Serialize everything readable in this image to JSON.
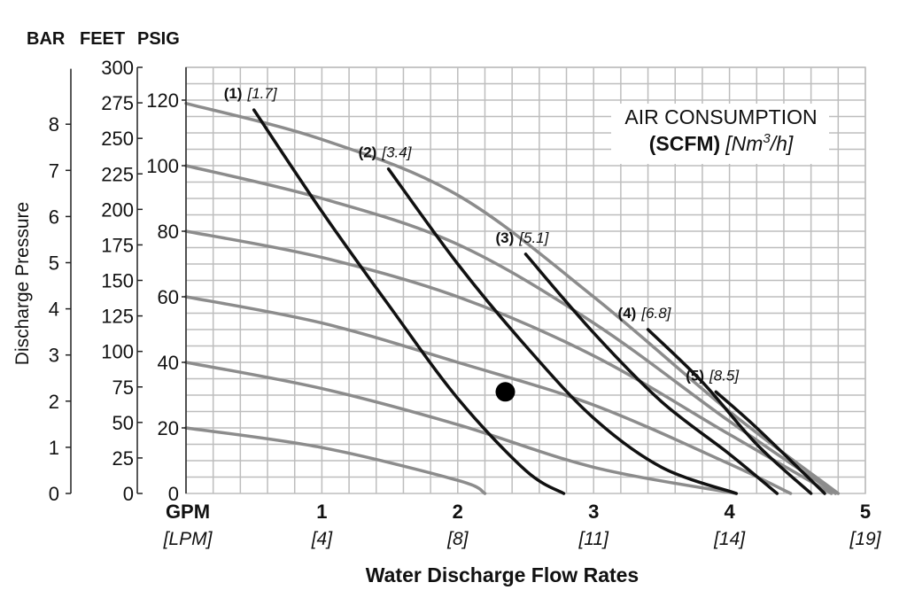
{
  "chart_data": {
    "type": "line",
    "title": "",
    "air_label": {
      "line1": "AIR CONSUMPTION",
      "bold": "(SCFM)",
      "italic_pre": "[Nm",
      "sup": "3",
      "italic_post": "/h]"
    },
    "unit_headers": [
      "BAR",
      "FEET",
      "PSIG"
    ],
    "ylabel": "Discharge Pressure",
    "xlabel": "Water Discharge Flow Rates",
    "x_unit": {
      "main": "GPM",
      "sub": "[LPM]"
    },
    "xlim": [
      0,
      5
    ],
    "psig_lim": [
      0,
      130
    ],
    "x_ticks": [
      {
        "v": 1,
        "label": "1",
        "sub": "[4]"
      },
      {
        "v": 2,
        "label": "2",
        "sub": "[8]"
      },
      {
        "v": 3,
        "label": "3",
        "sub": "[11]"
      },
      {
        "v": 4,
        "label": "4",
        "sub": "[14]"
      },
      {
        "v": 5,
        "label": "5",
        "sub": "[19]"
      }
    ],
    "psig_ticks": [
      "20",
      "40",
      "60",
      "80",
      "100",
      "120"
    ],
    "feet_ticks": [
      "0",
      "25",
      "50",
      "75",
      "100",
      "125",
      "150",
      "175",
      "200",
      "225",
      "250",
      "275",
      "300"
    ],
    "bar_ticks": [
      "0",
      "1",
      "2",
      "3",
      "4",
      "5",
      "6",
      "7",
      "8"
    ],
    "grid": true,
    "pressure_curves": [
      {
        "name": "120",
        "points": [
          [
            0,
            119
          ],
          [
            1,
            108
          ],
          [
            2,
            91
          ],
          [
            3,
            60
          ],
          [
            4,
            25
          ],
          [
            4.8,
            0
          ]
        ]
      },
      {
        "name": "100",
        "points": [
          [
            0,
            100
          ],
          [
            1,
            90
          ],
          [
            2,
            76
          ],
          [
            3,
            52
          ],
          [
            4,
            22
          ],
          [
            4.78,
            0
          ]
        ]
      },
      {
        "name": "80",
        "points": [
          [
            0,
            80
          ],
          [
            1,
            72
          ],
          [
            2,
            60
          ],
          [
            3,
            42
          ],
          [
            4,
            18
          ],
          [
            4.75,
            0
          ]
        ]
      },
      {
        "name": "60",
        "points": [
          [
            0,
            60
          ],
          [
            1,
            52
          ],
          [
            2,
            40
          ],
          [
            3,
            27
          ],
          [
            4,
            9
          ],
          [
            4.45,
            0
          ]
        ]
      },
      {
        "name": "40",
        "points": [
          [
            0,
            40
          ],
          [
            1,
            32
          ],
          [
            2,
            21
          ],
          [
            3,
            8
          ],
          [
            4.05,
            0
          ]
        ]
      },
      {
        "name": "20",
        "points": [
          [
            0,
            20
          ],
          [
            1,
            14
          ],
          [
            2,
            4
          ],
          [
            2.2,
            0
          ]
        ]
      }
    ],
    "air_curves": [
      {
        "label": "(1)",
        "sub": "[1.7]",
        "points": [
          [
            0.5,
            117
          ],
          [
            1.0,
            86
          ],
          [
            1.5,
            57
          ],
          [
            2.0,
            29
          ],
          [
            2.5,
            7
          ],
          [
            2.78,
            0
          ]
        ]
      },
      {
        "label": "(2)",
        "sub": "[3.4]",
        "points": [
          [
            1.49,
            99
          ],
          [
            2.0,
            70
          ],
          [
            2.5,
            45
          ],
          [
            3.0,
            23
          ],
          [
            3.5,
            8
          ],
          [
            4.05,
            0
          ]
        ]
      },
      {
        "label": "(3)",
        "sub": "[5.1]",
        "points": [
          [
            2.5,
            73
          ],
          [
            3.0,
            49
          ],
          [
            3.5,
            28
          ],
          [
            4.0,
            12
          ],
          [
            4.35,
            0
          ]
        ]
      },
      {
        "label": "(4)",
        "sub": "[6.8]",
        "points": [
          [
            3.4,
            50
          ],
          [
            3.8,
            34
          ],
          [
            4.2,
            15
          ],
          [
            4.6,
            0
          ]
        ]
      },
      {
        "label": "(5)",
        "sub": "[8.5]",
        "points": [
          [
            3.9,
            31
          ],
          [
            4.2,
            20
          ],
          [
            4.7,
            0
          ]
        ]
      }
    ],
    "marker": {
      "x": 2.35,
      "y": 31
    }
  }
}
